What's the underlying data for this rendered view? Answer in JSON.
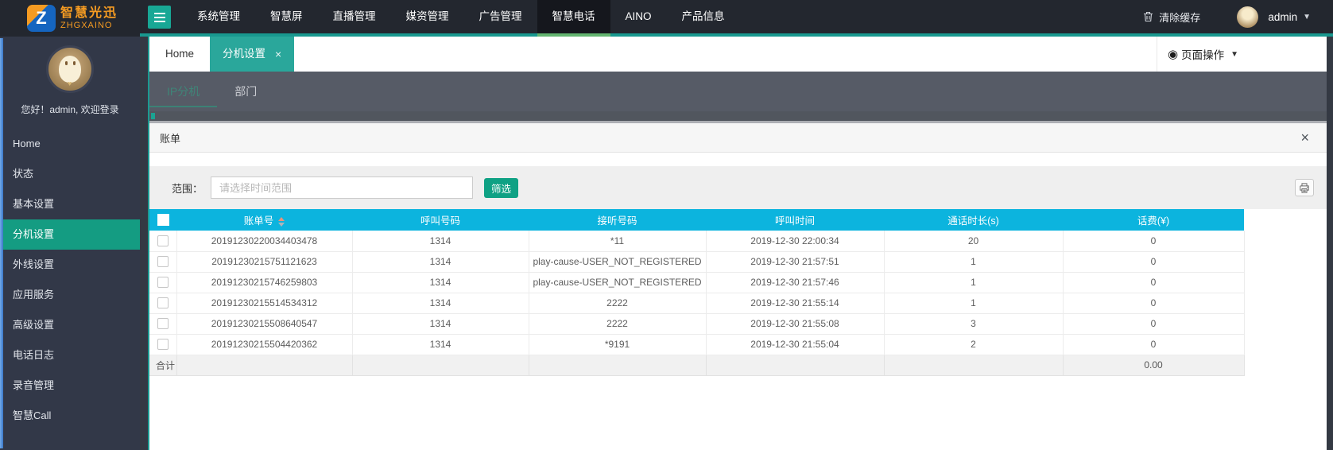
{
  "navbar": {
    "logo_title": "智慧光迅",
    "logo_subtitle": "ZHGXAINO",
    "logo_letter": "Z",
    "menu": [
      {
        "label": "系统管理",
        "active": false
      },
      {
        "label": "智慧屏",
        "active": false
      },
      {
        "label": "直播管理",
        "active": false
      },
      {
        "label": "媒资管理",
        "active": false
      },
      {
        "label": "广告管理",
        "active": false
      },
      {
        "label": "智慧电话",
        "active": true
      },
      {
        "label": "AINO",
        "active": false
      },
      {
        "label": "产品信息",
        "active": false
      }
    ],
    "clear_cache": "清除缓存",
    "user": "admin"
  },
  "sidebar": {
    "greeting": "您好！admin, 欢迎登录",
    "items": [
      {
        "label": "Home",
        "active": false
      },
      {
        "label": "状态",
        "active": false
      },
      {
        "label": "基本设置",
        "active": false
      },
      {
        "label": "分机设置",
        "active": true
      },
      {
        "label": "外线设置",
        "active": false
      },
      {
        "label": "应用服务",
        "active": false
      },
      {
        "label": "高级设置",
        "active": false
      },
      {
        "label": "电话日志",
        "active": false
      },
      {
        "label": "录音管理",
        "active": false
      },
      {
        "label": "智慧Call",
        "active": false
      }
    ]
  },
  "tabs": {
    "home": "Home",
    "active": "分机设置",
    "page_ops": "页面操作"
  },
  "subtabs": [
    "IP分机",
    "部门"
  ],
  "panel": {
    "title": "账单"
  },
  "form": {
    "label": "范围：",
    "placeholder": "请选择时间范围",
    "filter": "筛选"
  },
  "table": {
    "headers": [
      "账单号",
      "呼叫号码",
      "接听号码",
      "呼叫时间",
      "通话时长(s)",
      "话费(¥)"
    ],
    "rows": [
      [
        "20191230220034403478",
        "1314",
        "*11",
        "2019-12-30 22:00:34",
        "20",
        "0"
      ],
      [
        "20191230215751121623",
        "1314",
        "play-cause-USER_NOT_REGISTERED",
        "2019-12-30 21:57:51",
        "1",
        "0"
      ],
      [
        "20191230215746259803",
        "1314",
        "play-cause-USER_NOT_REGISTERED",
        "2019-12-30 21:57:46",
        "1",
        "0"
      ],
      [
        "20191230215514534312",
        "1314",
        "2222",
        "2019-12-30 21:55:14",
        "1",
        "0"
      ],
      [
        "20191230215508640547",
        "1314",
        "2222",
        "2019-12-30 21:55:08",
        "3",
        "0"
      ],
      [
        "20191230215504420362",
        "1314",
        "*9191",
        "2019-12-30 21:55:04",
        "2",
        "0"
      ]
    ],
    "footer": {
      "label": "合计",
      "total": "0.00"
    }
  },
  "icons": {
    "menu_toggle": "hamburger-lines",
    "clear_cache": "trash-icon",
    "page_ops": "◉",
    "caret": "▾",
    "tab_close": "×",
    "panel_close": "×",
    "print": "printer-icon",
    "sort": "up-down-triangles"
  },
  "colors": {
    "navbar_bg": "#23272f",
    "navbar_active_bg": "#15171d",
    "navbar_underline": "#18988f",
    "active_underline_green": "#63b46f",
    "sidebar_bg": "#323848",
    "sidebar_active": "#149c82",
    "tab_active": "#2aa79b",
    "subtab_bar": "#565b66",
    "table_header": "#0cb4de",
    "filter_button": "#0fa184",
    "logo_orange": "#f59b22",
    "left_scrollbar_blue": "#3a77c8"
  }
}
